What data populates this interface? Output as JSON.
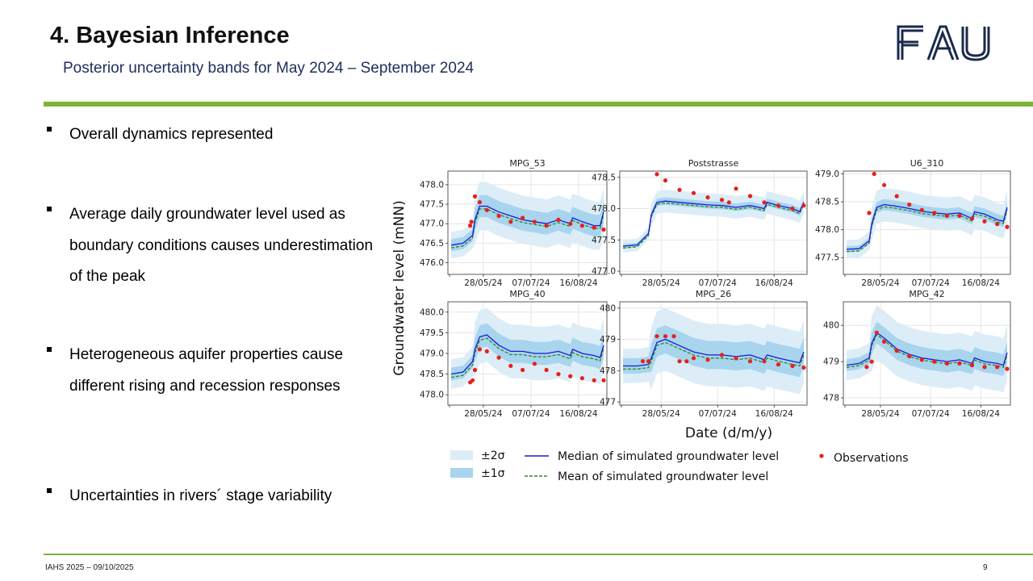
{
  "header": {
    "title": "4. Bayesian Inference",
    "subtitle": "Posterior uncertainty bands for May 2024 – September 2024",
    "logo_text": "FAU",
    "accent_color": "#7ab536",
    "logo_color": "#1b2a4a"
  },
  "bullets": [
    "Overall dynamics represented",
    "Average daily groundwater level used as boundary conditions causes underestimation of the peak",
    "Heterogeneous aquifer properties cause different rising and recession responses",
    "Uncertainties in rivers´ stage variability"
  ],
  "footer": {
    "left": "IAHS 2025 – 09/10/2025",
    "right": "9"
  },
  "chart_data": {
    "type": "line",
    "ylabel": "Groundwater level (mNN)",
    "xlabel": "Date (d/m/y)",
    "x_tick_labels": [
      "28/05/24",
      "07/07/24",
      "16/08/24"
    ],
    "x_tick_days": [
      27,
      67,
      107
    ],
    "x_days": [
      0,
      10,
      18,
      20,
      24,
      30,
      40,
      50,
      60,
      70,
      80,
      90,
      100,
      102,
      110,
      120,
      125,
      128
    ],
    "legend": [
      {
        "label": "±2σ",
        "kind": "band2",
        "color": "#dcedf7"
      },
      {
        "label": "±1σ",
        "kind": "band1",
        "color": "#a8d4ee"
      },
      {
        "label": "Median of simulated groundwater level",
        "kind": "line",
        "color": "#1a1ad6"
      },
      {
        "label": "Mean of simulated groundwater level",
        "kind": "dashed",
        "color": "#2a8a1e"
      },
      {
        "label": "Observations",
        "kind": "dots",
        "color": "#e8201c"
      }
    ],
    "panels": [
      {
        "name": "MPG_53",
        "ylim": [
          475.7,
          478.35
        ],
        "yticks": [
          476.0,
          476.5,
          477.0,
          477.5,
          478.0
        ],
        "median": [
          476.45,
          476.5,
          476.7,
          477.1,
          477.45,
          477.45,
          477.3,
          477.2,
          477.1,
          477.05,
          477.0,
          477.1,
          477.0,
          477.15,
          477.05,
          476.95,
          476.95,
          477.3
        ],
        "sigma1": 0.28,
        "sigma2": 0.62,
        "mean_offset": -0.07,
        "obs": [
          [
            16,
            476.95
          ],
          [
            17,
            477.05
          ],
          [
            20,
            477.7
          ],
          [
            24,
            477.55
          ],
          [
            30,
            477.35
          ],
          [
            40,
            477.2
          ],
          [
            50,
            477.05
          ],
          [
            60,
            477.15
          ],
          [
            70,
            477.05
          ],
          [
            80,
            476.95
          ],
          [
            90,
            477.1
          ],
          [
            100,
            477.0
          ],
          [
            110,
            476.95
          ],
          [
            120,
            476.9
          ],
          [
            128,
            476.85
          ]
        ]
      },
      {
        "name": "Poststrasse",
        "ylim": [
          476.95,
          478.6
        ],
        "yticks": [
          477.0,
          477.5,
          478.0,
          478.5
        ],
        "median": [
          477.4,
          477.42,
          477.6,
          477.9,
          478.1,
          478.12,
          478.1,
          478.08,
          478.06,
          478.05,
          478.02,
          478.05,
          478.0,
          478.1,
          478.05,
          478.0,
          477.95,
          478.1
        ],
        "sigma1": 0.06,
        "sigma2": 0.18,
        "mean_offset": -0.03,
        "obs": [
          [
            24,
            478.55
          ],
          [
            30,
            478.45
          ],
          [
            40,
            478.3
          ],
          [
            50,
            478.25
          ],
          [
            60,
            478.18
          ],
          [
            70,
            478.14
          ],
          [
            75,
            478.1
          ],
          [
            80,
            478.32
          ],
          [
            90,
            478.2
          ],
          [
            100,
            478.1
          ],
          [
            110,
            478.05
          ],
          [
            120,
            478.0
          ],
          [
            128,
            478.05
          ]
        ]
      },
      {
        "name": "U6_310",
        "ylim": [
          477.2,
          479.05
        ],
        "yticks": [
          477.5,
          478.0,
          478.5,
          479.0
        ],
        "median": [
          477.65,
          477.66,
          477.8,
          478.1,
          478.4,
          478.45,
          478.42,
          478.38,
          478.33,
          478.3,
          478.28,
          478.3,
          478.2,
          478.32,
          478.28,
          478.18,
          478.15,
          478.4
        ],
        "sigma1": 0.1,
        "sigma2": 0.3,
        "mean_offset": -0.04,
        "obs": [
          [
            18,
            478.3
          ],
          [
            22,
            479.0
          ],
          [
            30,
            478.8
          ],
          [
            40,
            478.6
          ],
          [
            50,
            478.45
          ],
          [
            60,
            478.35
          ],
          [
            70,
            478.3
          ],
          [
            80,
            478.25
          ],
          [
            90,
            478.25
          ],
          [
            100,
            478.2
          ],
          [
            110,
            478.15
          ],
          [
            120,
            478.1
          ],
          [
            128,
            478.05
          ]
        ]
      },
      {
        "name": "MPG_40",
        "ylim": [
          477.75,
          480.25
        ],
        "yticks": [
          478.0,
          478.5,
          479.0,
          479.5,
          480.0
        ],
        "median": [
          478.5,
          478.55,
          478.8,
          479.1,
          479.4,
          479.45,
          479.2,
          479.05,
          479.05,
          479.0,
          479.0,
          479.05,
          478.95,
          479.1,
          479.0,
          478.95,
          478.9,
          479.2
        ],
        "sigma1": 0.28,
        "sigma2": 0.65,
        "mean_offset": -0.08,
        "obs": [
          [
            16,
            478.3
          ],
          [
            18,
            478.35
          ],
          [
            20,
            478.6
          ],
          [
            24,
            479.1
          ],
          [
            30,
            479.05
          ],
          [
            40,
            478.9
          ],
          [
            50,
            478.7
          ],
          [
            60,
            478.6
          ],
          [
            70,
            478.75
          ],
          [
            80,
            478.6
          ],
          [
            90,
            478.5
          ],
          [
            100,
            478.45
          ],
          [
            110,
            478.4
          ],
          [
            120,
            478.35
          ],
          [
            128,
            478.35
          ]
        ]
      },
      {
        "name": "MPG_26",
        "ylim": [
          476.9,
          480.2
        ],
        "yticks": [
          477,
          478,
          479,
          480
        ],
        "median": [
          478.15,
          478.15,
          478.2,
          478.4,
          478.9,
          479.0,
          478.8,
          478.6,
          478.5,
          478.5,
          478.45,
          478.5,
          478.35,
          478.5,
          478.4,
          478.3,
          478.25,
          478.6
        ],
        "sigma1": 0.45,
        "sigma2": 1.0,
        "mean_offset": -0.1,
        "obs": [
          [
            14,
            478.3
          ],
          [
            18,
            478.3
          ],
          [
            24,
            479.1
          ],
          [
            30,
            479.1
          ],
          [
            36,
            479.1
          ],
          [
            40,
            478.3
          ],
          [
            45,
            478.3
          ],
          [
            50,
            478.4
          ],
          [
            60,
            478.35
          ],
          [
            70,
            478.5
          ],
          [
            80,
            478.4
          ],
          [
            90,
            478.3
          ],
          [
            100,
            478.3
          ],
          [
            110,
            478.2
          ],
          [
            120,
            478.15
          ],
          [
            128,
            478.1
          ]
        ]
      },
      {
        "name": "MPG_42",
        "ylim": [
          477.8,
          480.65
        ],
        "yticks": [
          478,
          479,
          480
        ],
        "median": [
          478.9,
          478.95,
          479.1,
          479.5,
          479.8,
          479.65,
          479.35,
          479.2,
          479.1,
          479.05,
          479.0,
          479.05,
          478.95,
          479.1,
          479.0,
          478.95,
          478.9,
          479.25
        ],
        "sigma1": 0.3,
        "sigma2": 0.75,
        "mean_offset": -0.06,
        "obs": [
          [
            16,
            478.85
          ],
          [
            20,
            479.0
          ],
          [
            24,
            479.8
          ],
          [
            30,
            479.55
          ],
          [
            40,
            479.3
          ],
          [
            50,
            479.15
          ],
          [
            60,
            479.05
          ],
          [
            70,
            479.0
          ],
          [
            80,
            478.95
          ],
          [
            90,
            478.95
          ],
          [
            100,
            478.9
          ],
          [
            110,
            478.85
          ],
          [
            120,
            478.85
          ],
          [
            128,
            478.8
          ]
        ]
      }
    ]
  }
}
